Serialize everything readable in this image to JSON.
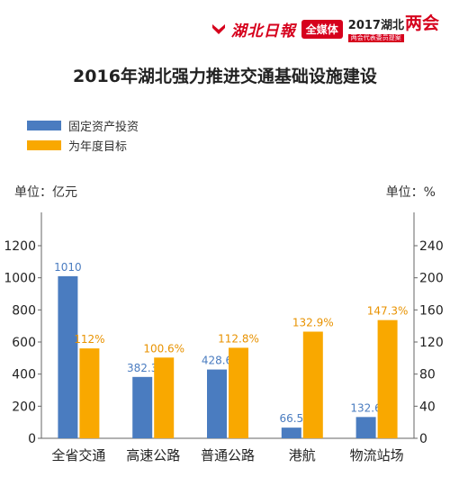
{
  "brand": {
    "paper_name": "湖北日報",
    "media_badge": "全媒体",
    "event_year_region": "2017湖北",
    "event_name": "两会",
    "event_subtitle": "两会代表委员提案",
    "accent_color": "#d6001c"
  },
  "chart_data": {
    "type": "bar",
    "title": "2016年湖北强力推进交通基础设施建设",
    "categories": [
      "全省交通",
      "高速公路",
      "普通公路",
      "港航",
      "物流站场"
    ],
    "series": [
      {
        "name": "固定资产投资",
        "axis": "left",
        "color": "#4a7cc0",
        "values": [
          1010,
          382.3,
          428.6,
          66.5,
          132.6
        ],
        "labels": [
          "1010",
          "382.3",
          "428.6",
          "66.5",
          "132.6"
        ]
      },
      {
        "name": "为年度目标",
        "axis": "right",
        "color": "#f9a800",
        "values": [
          112,
          100.6,
          112.8,
          132.9,
          147.3
        ],
        "labels": [
          "112%",
          "100.6%",
          "112.8%",
          "132.9%",
          "147.3%"
        ]
      }
    ],
    "y_left": {
      "unit_label": "单位：亿元",
      "ylim": [
        0,
        1200
      ],
      "ticks": [
        "0",
        "200",
        "400",
        "600",
        "800",
        "1000",
        "1200"
      ]
    },
    "y_right": {
      "unit_label": "单位：%",
      "ylim": [
        0,
        240
      ],
      "ticks": [
        "0",
        "40",
        "80",
        "120",
        "160",
        "200",
        "240"
      ]
    },
    "legend_position": "top-left",
    "grid": false
  }
}
